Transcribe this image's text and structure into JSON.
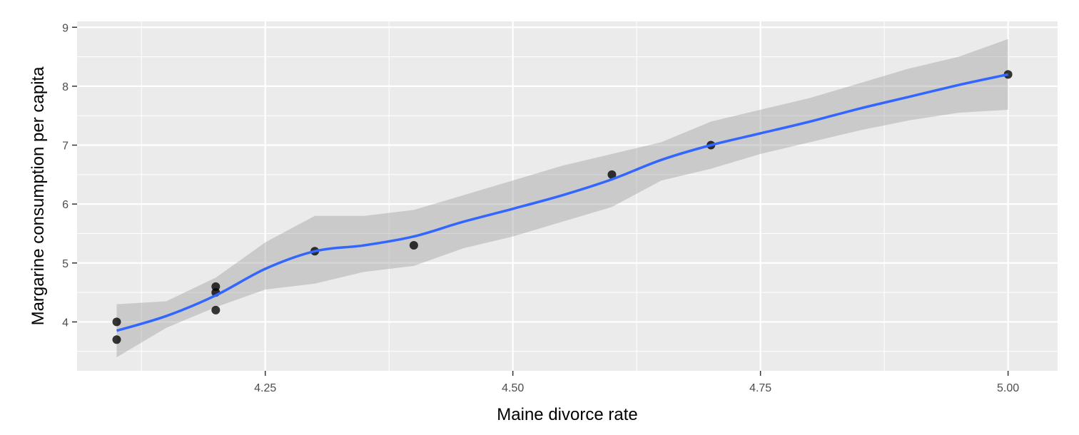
{
  "chart_data": {
    "type": "scatter",
    "xlabel": "Maine divorce rate",
    "ylabel": "Margarine consumption per capita",
    "xlim": [
      4.06,
      5.05
    ],
    "ylim": [
      3.17,
      9.1
    ],
    "x_ticks": [
      4.25,
      4.5,
      4.75,
      5.0
    ],
    "x_tick_labels": [
      "4.25",
      "4.50",
      "4.75",
      "5.00"
    ],
    "y_ticks": [
      4,
      5,
      6,
      7,
      8,
      9
    ],
    "y_tick_labels": [
      "4",
      "5",
      "6",
      "7",
      "8",
      "9"
    ],
    "grid": true,
    "points": [
      {
        "x": 4.1,
        "y": 4.0
      },
      {
        "x": 4.1,
        "y": 3.7
      },
      {
        "x": 4.2,
        "y": 4.6
      },
      {
        "x": 4.2,
        "y": 4.5
      },
      {
        "x": 4.2,
        "y": 4.2
      },
      {
        "x": 4.3,
        "y": 5.2
      },
      {
        "x": 4.4,
        "y": 5.3
      },
      {
        "x": 4.6,
        "y": 6.5
      },
      {
        "x": 4.7,
        "y": 7.0
      },
      {
        "x": 5.0,
        "y": 8.2
      }
    ],
    "smooth_line": {
      "x": [
        4.1,
        4.15,
        4.2,
        4.25,
        4.3,
        4.35,
        4.4,
        4.45,
        4.5,
        4.55,
        4.6,
        4.65,
        4.7,
        4.75,
        4.8,
        4.85,
        4.9,
        4.95,
        5.0
      ],
      "y": [
        3.85,
        4.1,
        4.45,
        4.9,
        5.2,
        5.3,
        5.45,
        5.7,
        5.92,
        6.15,
        6.42,
        6.75,
        7.0,
        7.2,
        7.4,
        7.62,
        7.82,
        8.02,
        8.2
      ]
    },
    "confidence_band": {
      "x": [
        4.1,
        4.15,
        4.2,
        4.25,
        4.3,
        4.35,
        4.4,
        4.45,
        4.5,
        4.55,
        4.6,
        4.65,
        4.7,
        4.75,
        4.8,
        4.85,
        4.9,
        4.95,
        5.0
      ],
      "lower": [
        3.4,
        3.9,
        4.25,
        4.55,
        4.65,
        4.85,
        4.95,
        5.25,
        5.45,
        5.7,
        5.95,
        6.4,
        6.6,
        6.85,
        7.05,
        7.25,
        7.42,
        7.55,
        7.6
      ],
      "upper": [
        4.3,
        4.35,
        4.75,
        5.35,
        5.8,
        5.8,
        5.9,
        6.15,
        6.4,
        6.65,
        6.85,
        7.05,
        7.4,
        7.6,
        7.8,
        8.05,
        8.3,
        8.5,
        8.8
      ]
    },
    "colors": {
      "panel": "#EBEBEB",
      "grid": "#FFFFFF",
      "line": "#3366FF",
      "band": "#999999",
      "points": "#000000"
    }
  }
}
